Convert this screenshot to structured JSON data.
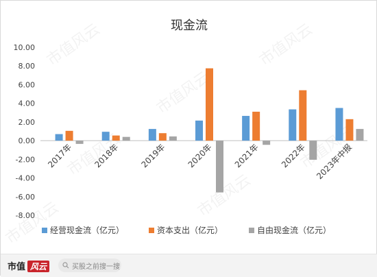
{
  "chart_data": {
    "type": "bar",
    "title": "现金流",
    "categories": [
      "2017年",
      "2018年",
      "2019年",
      "2020年",
      "2021年",
      "2022年",
      "2023年中报"
    ],
    "series": [
      {
        "name": "经营现金流（亿元）",
        "color": "#5b9bd5",
        "values": [
          0.7,
          0.95,
          1.25,
          2.15,
          2.65,
          3.35,
          3.5
        ]
      },
      {
        "name": "资本支出（亿元）",
        "color": "#ed7d31",
        "values": [
          1.05,
          0.55,
          0.8,
          7.75,
          3.1,
          5.4,
          2.3
        ]
      },
      {
        "name": "自由现金流（亿元）",
        "color": "#a5a5a5",
        "values": [
          -0.35,
          0.4,
          0.45,
          -5.55,
          -0.45,
          -2.05,
          1.25
        ]
      }
    ],
    "ylim": [
      -8,
      10
    ],
    "yticks": [
      "10.00",
      "8.00",
      "6.00",
      "4.00",
      "2.00",
      "0.00",
      "-2.00",
      "-4.00",
      "-6.00",
      "-8.00"
    ],
    "legend_position": "bottom",
    "grid": false
  },
  "watermark_text": "市值风云",
  "footer": {
    "brand": "市值",
    "brand_accent": "风云",
    "search_placeholder": "买股之前搜一搜"
  }
}
